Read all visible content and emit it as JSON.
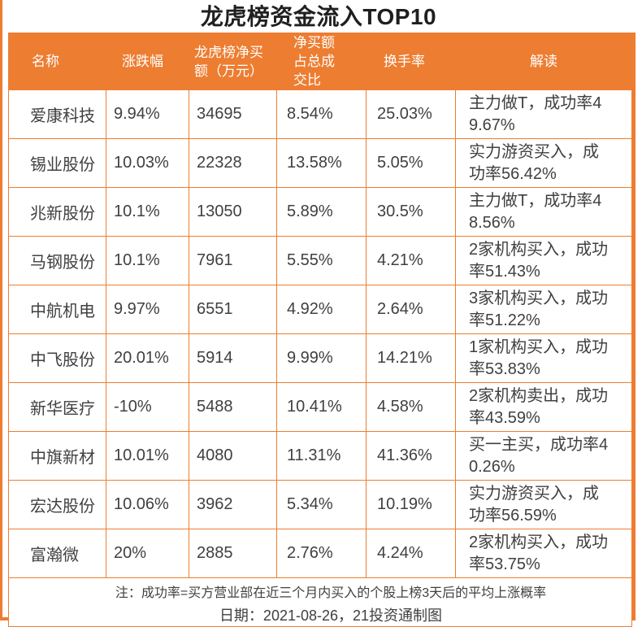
{
  "colors": {
    "accent": "#ED7D31",
    "header_text": "#FFFFFF",
    "body_text": "#404040"
  },
  "chart_data": {
    "type": "table",
    "title": "龙虎榜资金流入TOP10",
    "columns": [
      "名称",
      "涨跌幅",
      "龙虎榜净买额（万元）",
      "净买额占总成交比",
      "换手率",
      "解读"
    ],
    "rows": [
      [
        "爱康科技",
        "9.94%",
        "34695",
        "8.54%",
        "25.03%",
        "主力做T，成功率49.67%"
      ],
      [
        "锡业股份",
        "10.03%",
        "22328",
        "13.58%",
        "5.05%",
        "实力游资买入，成功率56.42%"
      ],
      [
        "兆新股份",
        "10.1%",
        "13050",
        "5.89%",
        "30.5%",
        "主力做T，成功率48.56%"
      ],
      [
        "马钢股份",
        "10.1%",
        "7961",
        "5.55%",
        "4.21%",
        "2家机构买入，成功率51.43%"
      ],
      [
        "中航机电",
        "9.97%",
        "6551",
        "4.92%",
        "2.64%",
        "3家机构买入，成功率51.22%"
      ],
      [
        "中飞股份",
        "20.01%",
        "5914",
        "9.99%",
        "14.21%",
        "1家机构买入，成功率53.83%"
      ],
      [
        "新华医疗",
        "-10%",
        "5488",
        "10.41%",
        "4.58%",
        "2家机构卖出，成功率43.59%"
      ],
      [
        "中旗新材",
        "10.01%",
        "4080",
        "11.31%",
        "41.36%",
        "买一主买，成功率40.26%"
      ],
      [
        "宏达股份",
        "10.06%",
        "3962",
        "5.34%",
        "10.19%",
        "实力游资买入，成功率56.59%"
      ],
      [
        "富瀚微",
        "20%",
        "2885",
        "2.76%",
        "4.24%",
        "2家机构买入，成功率53.75%"
      ]
    ],
    "footnote": "注：成功率=买方营业部在近三个月内买入的个股上榜3天后的平均上涨概率",
    "date_line": "日期：2021-08-26，21投资通制图"
  }
}
